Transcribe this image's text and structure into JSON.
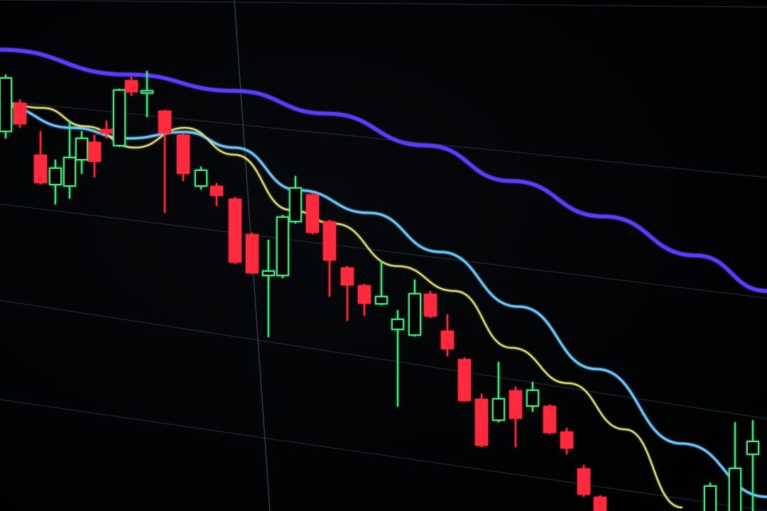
{
  "scene": {
    "subject": "candlestick-chart-photo",
    "colors": {
      "background": "#020304",
      "bullish": "#3ee87a",
      "bearish": "#ff2a3c",
      "ma_slow": "#5a3cff",
      "ma_mid": "#6ec8ff",
      "ma_fast": "#e8e878",
      "grid": "#2a3a4a"
    }
  }
}
